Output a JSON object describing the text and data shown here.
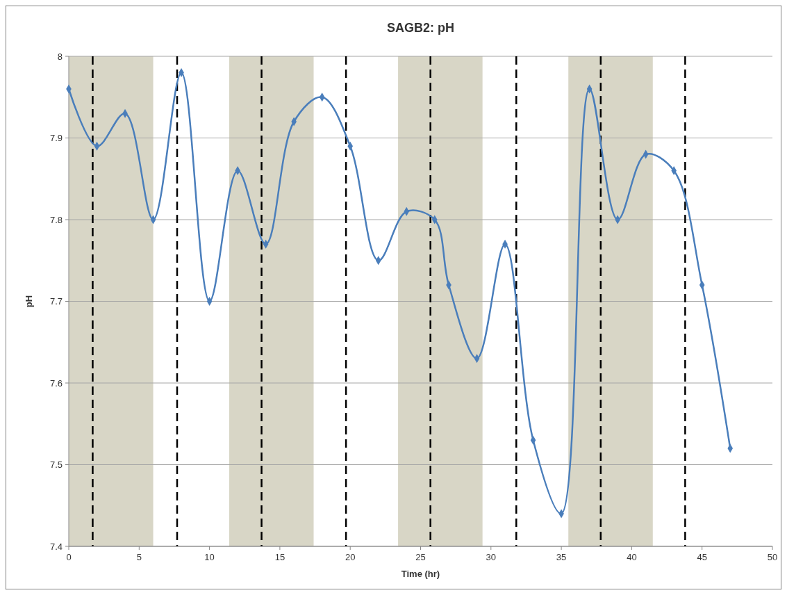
{
  "chart_data": {
    "type": "line",
    "title": "SAGB2: pH",
    "xlabel": "Time (hr)",
    "ylabel": "pH",
    "x": [
      0,
      2,
      4,
      6,
      8,
      10,
      12,
      14,
      16,
      18,
      20,
      22,
      24,
      26,
      27,
      29,
      31,
      33,
      35,
      37,
      39,
      41,
      43,
      45,
      47
    ],
    "series": [
      {
        "color": "#4a7ebb",
        "values": [
          7.96,
          7.89,
          7.93,
          7.8,
          7.98,
          7.7,
          7.86,
          7.77,
          7.92,
          7.95,
          7.89,
          7.75,
          7.81,
          7.8,
          7.72,
          7.63,
          7.77,
          7.53,
          7.44,
          7.96,
          7.8,
          7.88,
          7.86,
          7.72,
          7.52
        ]
      }
    ],
    "xlim": [
      0,
      50
    ],
    "xticks": [
      0,
      5,
      10,
      15,
      20,
      25,
      30,
      35,
      40,
      45,
      50
    ],
    "ylim": [
      7.4,
      8
    ],
    "yticks": [
      {
        "value": 7.4,
        "label": "7.4"
      },
      {
        "value": 7.5,
        "label": "7.5"
      },
      {
        "value": 7.6,
        "label": "7.6"
      },
      {
        "value": 7.7,
        "label": "7.7"
      },
      {
        "value": 7.8,
        "label": "7.8"
      },
      {
        "value": 7.9,
        "label": "7.9"
      },
      {
        "value": 8,
        "label": "8"
      }
    ],
    "grid": "y",
    "marker": "diamond",
    "line_style": "solid",
    "bands": [
      {
        "axis": "x",
        "from": 0,
        "to": 6,
        "color": "#d8d6c6"
      },
      {
        "axis": "x",
        "from": 11.4,
        "to": 17.4,
        "color": "#d8d6c6"
      },
      {
        "axis": "x",
        "from": 23.4,
        "to": 29.4,
        "color": "#d8d6c6"
      },
      {
        "axis": "x",
        "from": 35.5,
        "to": 41.5,
        "color": "#d8d6c6"
      }
    ],
    "ref_lines": [
      {
        "axis": "x",
        "value": 1.7,
        "color": "#000000",
        "line_style": "dashed"
      },
      {
        "axis": "x",
        "value": 7.7,
        "color": "#000000",
        "line_style": "dashed"
      },
      {
        "axis": "x",
        "value": 13.7,
        "color": "#000000",
        "line_style": "dashed"
      },
      {
        "axis": "x",
        "value": 19.7,
        "color": "#000000",
        "line_style": "dashed"
      },
      {
        "axis": "x",
        "value": 25.7,
        "color": "#000000",
        "line_style": "dashed"
      },
      {
        "axis": "x",
        "value": 31.8,
        "color": "#000000",
        "line_style": "dashed"
      },
      {
        "axis": "x",
        "value": 37.8,
        "color": "#000000",
        "line_style": "dashed"
      },
      {
        "axis": "x",
        "value": 43.8,
        "color": "#000000",
        "line_style": "dashed"
      }
    ]
  }
}
